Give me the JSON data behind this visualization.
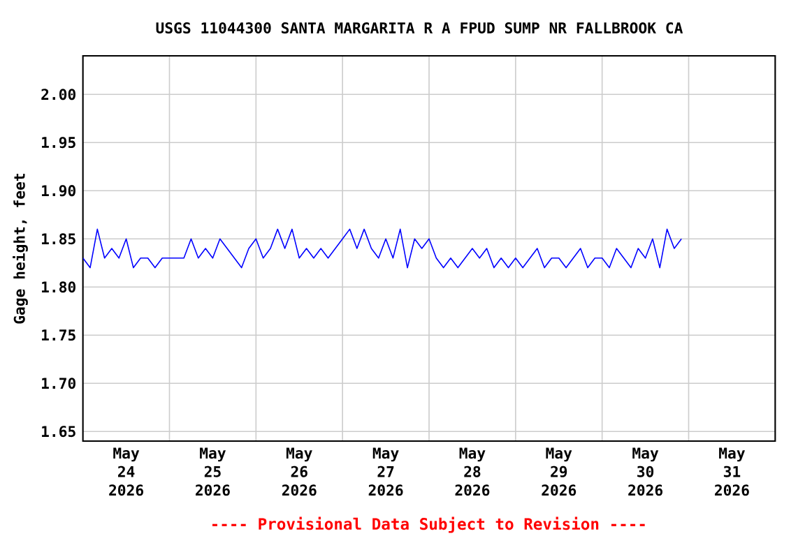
{
  "chart_data": {
    "type": "line",
    "title": "USGS 11044300 SANTA MARGARITA R A FPUD SUMP NR FALLBROOK CA",
    "ylabel": "Gage height, feet",
    "annotations": [
      "---- Provisional Data Subject to Revision ----"
    ],
    "xlim": [
      "2026-05-24T00:00",
      "2026-06-01T00:00"
    ],
    "xticks": [
      {
        "value": "2026-05-24T12:00",
        "label": "May 24 2026"
      },
      {
        "value": "2026-05-25T12:00",
        "label": "May 25 2026"
      },
      {
        "value": "2026-05-26T12:00",
        "label": "May 26 2026"
      },
      {
        "value": "2026-05-27T12:00",
        "label": "May 27 2026"
      },
      {
        "value": "2026-05-28T12:00",
        "label": "May 28 2026"
      },
      {
        "value": "2026-05-29T12:00",
        "label": "May 29 2026"
      },
      {
        "value": "2026-05-30T12:00",
        "label": "May 30 2026"
      },
      {
        "value": "2026-05-31T12:00",
        "label": "May 31 2026"
      },
      {
        "value": "2026-05-25T00:00",
        "label": null
      },
      {
        "value": "2026-05-26T00:00",
        "label": null
      },
      {
        "value": "2026-05-27T00:00",
        "label": null
      },
      {
        "value": "2026-05-28T00:00",
        "label": null
      },
      {
        "value": "2026-05-29T00:00",
        "label": null
      },
      {
        "value": "2026-05-30T00:00",
        "label": null
      },
      {
        "value": "2026-05-31T00:00",
        "label": null
      }
    ],
    "ylim": [
      1.64,
      2.04
    ],
    "yticks": [
      {
        "value": 1.65,
        "label": "1.65"
      },
      {
        "value": 1.7,
        "label": "1.70"
      },
      {
        "value": 1.75,
        "label": "1.75"
      },
      {
        "value": 1.8,
        "label": "1.80"
      },
      {
        "value": 1.85,
        "label": "1.85"
      },
      {
        "value": 1.9,
        "label": "1.90"
      },
      {
        "value": 1.95,
        "label": "1.95"
      },
      {
        "value": 2.0,
        "label": "2.00"
      }
    ],
    "grid": true,
    "color": "#0000ff",
    "x": [
      "2026-05-24T00:00",
      "2026-05-24T02:00",
      "2026-05-24T04:00",
      "2026-05-24T06:00",
      "2026-05-24T08:00",
      "2026-05-24T10:00",
      "2026-05-24T12:00",
      "2026-05-24T14:00",
      "2026-05-24T16:00",
      "2026-05-24T18:00",
      "2026-05-24T20:00",
      "2026-05-24T22:00",
      "2026-05-25T00:00",
      "2026-05-25T02:00",
      "2026-05-25T04:00",
      "2026-05-25T06:00",
      "2026-05-25T08:00",
      "2026-05-25T10:00",
      "2026-05-25T12:00",
      "2026-05-25T14:00",
      "2026-05-25T16:00",
      "2026-05-25T18:00",
      "2026-05-25T20:00",
      "2026-05-25T22:00",
      "2026-05-26T00:00",
      "2026-05-26T02:00",
      "2026-05-26T04:00",
      "2026-05-26T06:00",
      "2026-05-26T08:00",
      "2026-05-26T10:00",
      "2026-05-26T12:00",
      "2026-05-26T14:00",
      "2026-05-26T16:00",
      "2026-05-26T18:00",
      "2026-05-26T20:00",
      "2026-05-26T22:00",
      "2026-05-27T00:00",
      "2026-05-27T02:00",
      "2026-05-27T04:00",
      "2026-05-27T06:00",
      "2026-05-27T08:00",
      "2026-05-27T10:00",
      "2026-05-27T12:00",
      "2026-05-27T14:00",
      "2026-05-27T16:00",
      "2026-05-27T18:00",
      "2026-05-27T20:00",
      "2026-05-27T22:00",
      "2026-05-28T00:00",
      "2026-05-28T02:00",
      "2026-05-28T04:00",
      "2026-05-28T06:00",
      "2026-05-28T08:00",
      "2026-05-28T10:00",
      "2026-05-28T12:00",
      "2026-05-28T14:00",
      "2026-05-28T16:00",
      "2026-05-28T18:00",
      "2026-05-28T20:00",
      "2026-05-28T22:00",
      "2026-05-29T00:00",
      "2026-05-29T02:00",
      "2026-05-29T04:00",
      "2026-05-29T06:00",
      "2026-05-29T08:00",
      "2026-05-29T10:00",
      "2026-05-29T12:00",
      "2026-05-29T14:00",
      "2026-05-29T16:00",
      "2026-05-29T18:00",
      "2026-05-29T20:00",
      "2026-05-29T22:00",
      "2026-05-30T00:00",
      "2026-05-30T02:00",
      "2026-05-30T04:00",
      "2026-05-30T06:00",
      "2026-05-30T08:00",
      "2026-05-30T10:00",
      "2026-05-30T12:00",
      "2026-05-30T14:00",
      "2026-05-30T16:00",
      "2026-05-30T18:00",
      "2026-05-30T20:00",
      "2026-05-30T22:00"
    ],
    "values": [
      1.83,
      1.82,
      1.86,
      1.83,
      1.84,
      1.83,
      1.85,
      1.82,
      1.83,
      1.83,
      1.82,
      1.83,
      1.83,
      1.83,
      1.83,
      1.85,
      1.83,
      1.84,
      1.83,
      1.85,
      1.84,
      1.83,
      1.82,
      1.84,
      1.85,
      1.83,
      1.84,
      1.86,
      1.84,
      1.86,
      1.83,
      1.84,
      1.83,
      1.84,
      1.83,
      1.84,
      1.85,
      1.86,
      1.84,
      1.86,
      1.84,
      1.83,
      1.85,
      1.83,
      1.86,
      1.82,
      1.85,
      1.84,
      1.85,
      1.83,
      1.82,
      1.83,
      1.82,
      1.83,
      1.84,
      1.83,
      1.84,
      1.82,
      1.83,
      1.82,
      1.83,
      1.82,
      1.83,
      1.84,
      1.82,
      1.83,
      1.83,
      1.82,
      1.83,
      1.84,
      1.82,
      1.83,
      1.83,
      1.82,
      1.84,
      1.83,
      1.82,
      1.84,
      1.83,
      1.85,
      1.82,
      1.86,
      1.84,
      1.85
    ]
  }
}
